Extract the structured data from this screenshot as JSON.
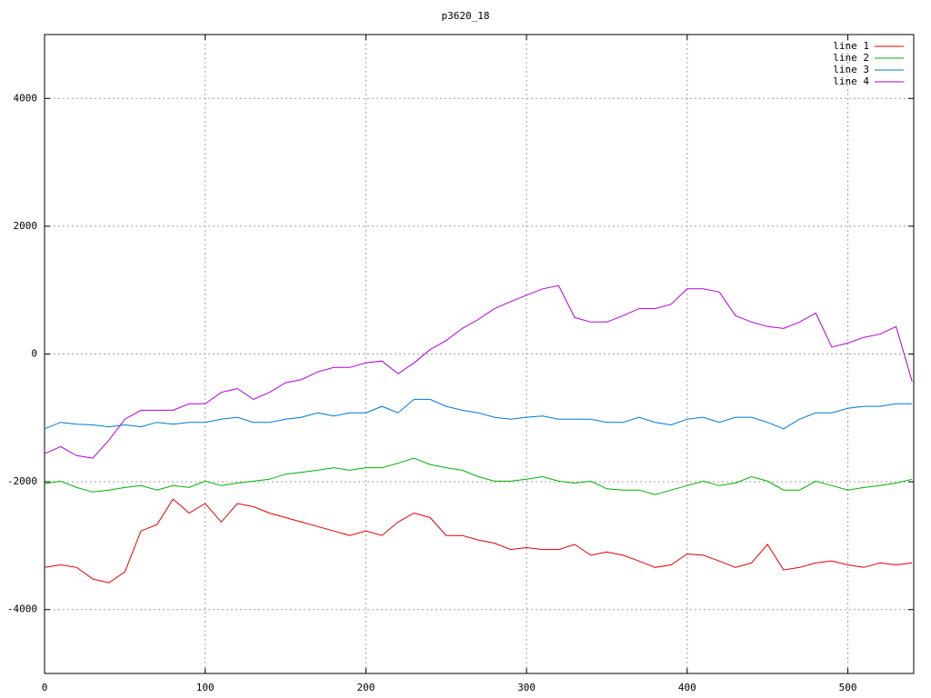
{
  "chart_data": {
    "type": "line",
    "title": "p3620_18",
    "x": [
      0,
      10,
      20,
      30,
      40,
      50,
      60,
      70,
      80,
      90,
      100,
      110,
      120,
      130,
      140,
      150,
      160,
      170,
      180,
      190,
      200,
      210,
      220,
      230,
      240,
      250,
      260,
      270,
      280,
      290,
      300,
      310,
      320,
      330,
      340,
      350,
      360,
      370,
      380,
      390,
      400,
      410,
      420,
      430,
      440,
      450,
      460,
      470,
      480,
      490,
      500,
      510,
      520,
      530,
      540
    ],
    "series": [
      {
        "name": "line 1",
        "color": "#e00000",
        "values": [
          -3340,
          -3300,
          -3340,
          -3520,
          -3580,
          -3410,
          -2770,
          -2670,
          -2270,
          -2490,
          -2340,
          -2630,
          -2340,
          -2390,
          -2490,
          -2560,
          -2630,
          -2700,
          -2770,
          -2840,
          -2770,
          -2840,
          -2630,
          -2490,
          -2560,
          -2840,
          -2840,
          -2910,
          -2960,
          -3060,
          -3030,
          -3060,
          -3060,
          -2980,
          -3150,
          -3100,
          -3150,
          -3240,
          -3340,
          -3300,
          -3130,
          -3150,
          -3240,
          -3340,
          -3270,
          -2980,
          -3380,
          -3340,
          -3270,
          -3240,
          -3300,
          -3340,
          -3270,
          -3300,
          -3270
        ]
      },
      {
        "name": "line 2",
        "color": "#00b000",
        "values": [
          -2030,
          -1990,
          -2090,
          -2160,
          -2130,
          -2090,
          -2060,
          -2130,
          -2060,
          -2090,
          -1990,
          -2060,
          -2020,
          -1990,
          -1960,
          -1880,
          -1850,
          -1820,
          -1780,
          -1820,
          -1780,
          -1780,
          -1710,
          -1630,
          -1730,
          -1780,
          -1820,
          -1920,
          -1990,
          -1990,
          -1960,
          -1920,
          -1990,
          -2020,
          -1990,
          -2110,
          -2130,
          -2130,
          -2200,
          -2130,
          -2060,
          -1990,
          -2060,
          -2020,
          -1920,
          -1990,
          -2130,
          -2130,
          -1990,
          -2060,
          -2130,
          -2090,
          -2060,
          -2020,
          -1960
        ]
      },
      {
        "name": "line 3",
        "color": "#0078d0",
        "values": [
          -1170,
          -1070,
          -1100,
          -1110,
          -1140,
          -1110,
          -1140,
          -1070,
          -1100,
          -1070,
          -1070,
          -1020,
          -990,
          -1070,
          -1070,
          -1020,
          -990,
          -920,
          -970,
          -920,
          -920,
          -820,
          -920,
          -710,
          -710,
          -820,
          -880,
          -920,
          -990,
          -1020,
          -990,
          -970,
          -1020,
          -1020,
          -1020,
          -1070,
          -1070,
          -990,
          -1070,
          -1110,
          -1020,
          -990,
          -1070,
          -990,
          -990,
          -1070,
          -1170,
          -1020,
          -920,
          -920,
          -850,
          -820,
          -820,
          -780,
          -780
        ]
      },
      {
        "name": "line 4",
        "color": "#b000d8",
        "values": [
          -1560,
          -1450,
          -1590,
          -1630,
          -1350,
          -1020,
          -880,
          -880,
          -880,
          -780,
          -780,
          -600,
          -540,
          -710,
          -600,
          -450,
          -400,
          -280,
          -210,
          -210,
          -140,
          -110,
          -310,
          -140,
          70,
          210,
          400,
          540,
          710,
          820,
          920,
          1020,
          1070,
          570,
          500,
          500,
          600,
          710,
          710,
          780,
          1020,
          1020,
          970,
          600,
          500,
          430,
          400,
          500,
          640,
          110,
          170,
          260,
          310,
          430,
          -430
        ]
      }
    ],
    "xlim": [
      0,
      541
    ],
    "xticks": [
      0,
      100,
      200,
      300,
      400,
      500
    ],
    "ylim": [
      -5000,
      5000
    ],
    "yticks": [
      -4000,
      -2000,
      0,
      2000,
      4000
    ],
    "grid": true,
    "legend": "top-right"
  }
}
